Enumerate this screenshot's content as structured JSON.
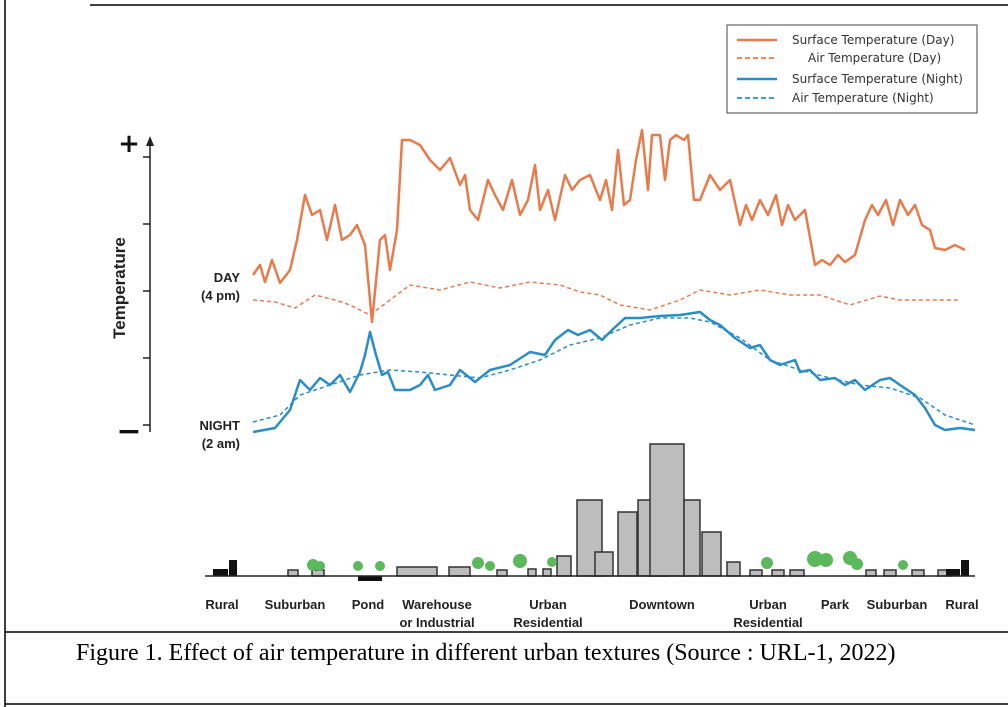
{
  "figure": {
    "legend": [
      "Surface Temperature (Day)",
      "Air Temperature  (Day)",
      "Surface Temperature (Night)",
      "Air Temperature (Night)"
    ],
    "y_axis_label": "Temperature",
    "y_max_symbol": "+",
    "y_min_symbol": "−",
    "day_label": [
      "DAY",
      "(4 pm)"
    ],
    "night_label": [
      "NIGHT",
      "(2 am)"
    ],
    "zones": [
      [
        "Rural"
      ],
      [
        "Suburban"
      ],
      [
        "Pond"
      ],
      [
        "Warehouse",
        "or Industrial"
      ],
      [
        "Urban",
        "Residential"
      ],
      [
        "Downtown"
      ],
      [
        "Urban",
        "Residential"
      ],
      [
        "Park"
      ],
      [
        "Suburban"
      ],
      [
        "Rural"
      ]
    ]
  },
  "caption": "Figure 1. Effect of air temperature in different urban textures (Source : URL-1, 2022)"
}
